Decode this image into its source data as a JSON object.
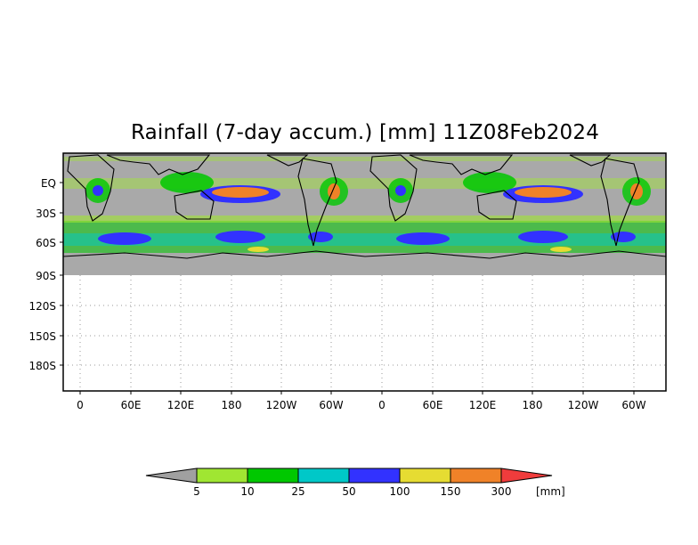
{
  "title": "Rainfall (7-day accum.) [mm] 11Z08Feb2024",
  "lat_labels": [
    "EQ",
    "30S",
    "60S",
    "90S",
    "120S",
    "150S",
    "180S"
  ],
  "lon_labels": [
    "0",
    "60E",
    "120E",
    "180",
    "120W",
    "60W",
    "0",
    "60E",
    "120E",
    "180",
    "120W",
    "60W"
  ],
  "colorbar": {
    "unit": "[mm]",
    "labels": [
      "5",
      "10",
      "25",
      "50",
      "100",
      "150",
      "300"
    ],
    "colors": [
      "#a0a0a0",
      "#a0e632",
      "#00c800",
      "#00c8c8",
      "#3232ff",
      "#e6dc32",
      "#f08228",
      "#f03c3c"
    ]
  },
  "colors": {
    "land_dry": "#a9a9a9",
    "rain_light": "#a0e632",
    "rain_moderate": "#00c800",
    "rain_heavy": "#3232ff",
    "rain_extreme": "#f08228",
    "coastline": "#000000",
    "grid": "#9a9a9a"
  }
}
